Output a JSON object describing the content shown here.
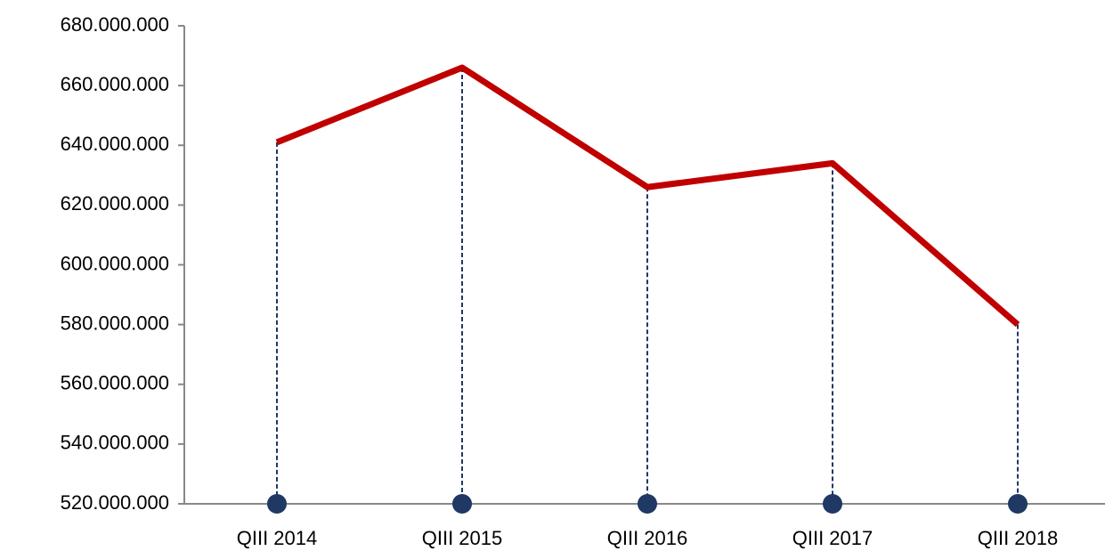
{
  "chart_data": {
    "type": "line",
    "categories": [
      "QIII 2014",
      "QIII 2015",
      "QIII 2016",
      "QIII 2017",
      "QIII 2018"
    ],
    "series": [
      {
        "color": "#c00000",
        "values": [
          641000000,
          666000000,
          626000000,
          634000000,
          580000000
        ]
      }
    ],
    "drop_line_color": "#1f3864",
    "ylim": [
      520000000,
      680000000
    ],
    "yticks": [
      {
        "value": 520000000,
        "label": "520.000.000"
      },
      {
        "value": 540000000,
        "label": "540.000.000"
      },
      {
        "value": 560000000,
        "label": "560.000.000"
      },
      {
        "value": 580000000,
        "label": "580.000.000"
      },
      {
        "value": 600000000,
        "label": "600.000.000"
      },
      {
        "value": 620000000,
        "label": "620.000.000"
      },
      {
        "value": 640000000,
        "label": "640.000.000"
      },
      {
        "value": 660000000,
        "label": "660.000.000"
      },
      {
        "value": 680000000,
        "label": "680.000.000"
      }
    ],
    "grid": false
  }
}
